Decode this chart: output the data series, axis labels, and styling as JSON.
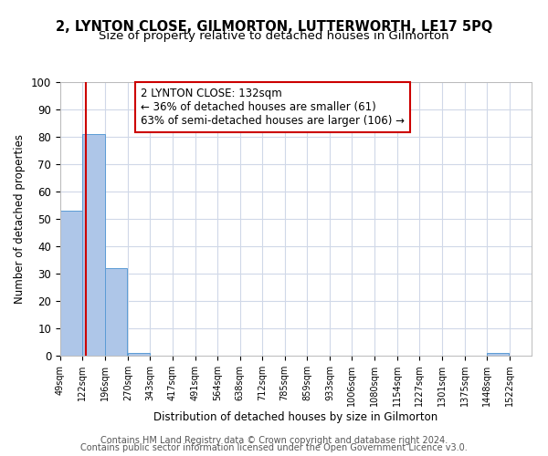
{
  "title1": "2, LYNTON CLOSE, GILMORTON, LUTTERWORTH, LE17 5PQ",
  "title2": "Size of property relative to detached houses in Gilmorton",
  "xlabel": "Distribution of detached houses by size in Gilmorton",
  "ylabel": "Number of detached properties",
  "bin_labels": [
    "49sqm",
    "122sqm",
    "196sqm",
    "270sqm",
    "343sqm",
    "417sqm",
    "491sqm",
    "564sqm",
    "638sqm",
    "712sqm",
    "785sqm",
    "859sqm",
    "933sqm",
    "1006sqm",
    "1080sqm",
    "1154sqm",
    "1227sqm",
    "1301sqm",
    "1375sqm",
    "1448sqm",
    "1522sqm"
  ],
  "bin_edges": [
    49,
    122,
    196,
    270,
    343,
    417,
    491,
    564,
    638,
    712,
    785,
    859,
    933,
    1006,
    1080,
    1154,
    1227,
    1301,
    1375,
    1448,
    1522
  ],
  "bar_heights": [
    53,
    81,
    32,
    1,
    0,
    0,
    0,
    0,
    0,
    0,
    0,
    0,
    0,
    0,
    0,
    0,
    0,
    0,
    0,
    1,
    0
  ],
  "bar_color": "#aec6e8",
  "bar_edge_color": "#5b9bd5",
  "property_size": 132,
  "vline_color": "#cc0000",
  "annotation_line1": "2 LYNTON CLOSE: 132sqm",
  "annotation_line2": "← 36% of detached houses are smaller (61)",
  "annotation_line3": "63% of semi-detached houses are larger (106) →",
  "annotation_box_color": "#ffffff",
  "annotation_box_edge_color": "#cc0000",
  "ylim": [
    0,
    100
  ],
  "yticks": [
    0,
    10,
    20,
    30,
    40,
    50,
    60,
    70,
    80,
    90,
    100
  ],
  "footer1": "Contains HM Land Registry data © Crown copyright and database right 2024.",
  "footer2": "Contains public sector information licensed under the Open Government Licence v3.0.",
  "background_color": "#ffffff",
  "grid_color": "#d0d8e8",
  "title1_fontsize": 10.5,
  "title2_fontsize": 9.5,
  "annotation_fontsize": 8.5,
  "footer_fontsize": 7,
  "ylabel_fontsize": 8.5,
  "xlabel_fontsize": 8.5,
  "ytick_fontsize": 8.5,
  "xtick_fontsize": 7
}
